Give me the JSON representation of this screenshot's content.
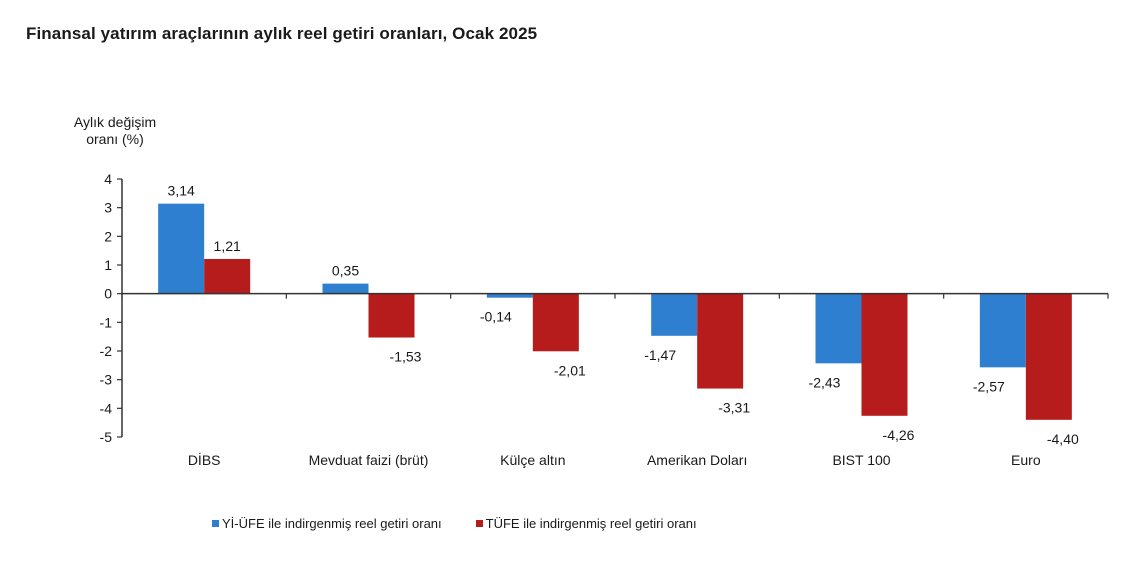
{
  "title": "Finansal yatırım araçlarının aylık reel getiri oranları, Ocak 2025",
  "ylabel_line1": "Aylık değişim",
  "ylabel_line2": "oranı (%)",
  "legend": [
    {
      "label": "Yİ-ÜFE ile indirgenmiş reel getiri oranı",
      "color": "#2e7fcf"
    },
    {
      "label": "TÜFE ile indirgenmiş reel getiri oranı",
      "color": "#b71c1c"
    }
  ],
  "chart_data": {
    "type": "bar",
    "title": "Finansal yatırım araçlarının aylık reel getiri oranları, Ocak 2025",
    "xlabel": "",
    "ylabel": "Aylık değişim oranı (%)",
    "ylim": [
      -5,
      4
    ],
    "yticks": [
      4,
      3,
      2,
      1,
      0,
      -1,
      -2,
      -3,
      -4,
      -5
    ],
    "grid": false,
    "legend_position": "bottom",
    "categories": [
      "DİBS",
      "Mevduat faizi (brüt)",
      "Külçe altın",
      "Amerikan Doları",
      "BIST 100",
      "Euro"
    ],
    "series": [
      {
        "name": "Yİ-ÜFE ile indirgenmiş reel getiri oranı",
        "color": "#2e7fcf",
        "values": [
          3.14,
          0.35,
          -0.14,
          -1.47,
          -2.43,
          -2.57
        ],
        "labels": [
          "3,14",
          "0,35",
          "-0,14",
          "-1,47",
          "-2,43",
          "-2,57"
        ]
      },
      {
        "name": "TÜFE ile indirgenmiş reel getiri oranı",
        "color": "#b71c1c",
        "values": [
          1.21,
          -1.53,
          -2.01,
          -3.31,
          -4.26,
          -4.4
        ],
        "labels": [
          "1,21",
          "-1,53",
          "-2,01",
          "-3,31",
          "-4,26",
          "-4,40"
        ]
      }
    ]
  }
}
